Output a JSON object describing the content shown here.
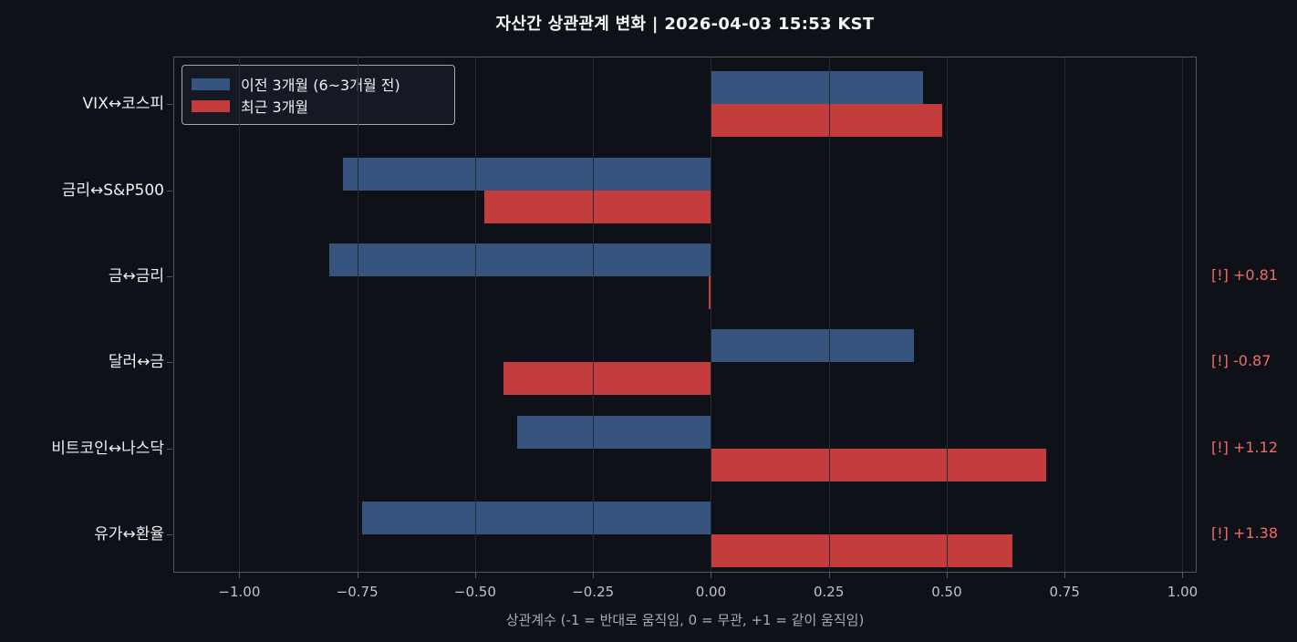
{
  "title": "자산간 상관관계 변화 | 2026-04-03 15:53 KST",
  "colors": {
    "background": "#0E1117",
    "prev_bar": "#36547E",
    "recent_bar": "#C43C3C",
    "alert_annotation": "#F06A6A",
    "spine": "#50565F",
    "grid": "#262B35"
  },
  "chart_data": {
    "type": "bar",
    "orientation": "horizontal",
    "title": "자산간 상관관계 변화 | 2026-04-03 15:53 KST",
    "categories": [
      "VIX↔코스피",
      "금리↔S&P500",
      "금↔금리",
      "달러↔금",
      "비트코인↔나스닥",
      "유가↔환율"
    ],
    "series": [
      {
        "name": "이전 3개월 (6~3개월 전)",
        "color": "#36547E",
        "values": [
          0.45,
          -0.78,
          -0.81,
          0.43,
          -0.41,
          -0.74
        ]
      },
      {
        "name": "최근 3개월",
        "color": "#C43C3C",
        "values": [
          0.49,
          -0.48,
          -0.005,
          -0.44,
          0.71,
          0.64
        ]
      }
    ],
    "change_annotations": [
      "",
      "",
      "[!] +0.81",
      "[!] -0.87",
      "[!] +1.12",
      "[!] +1.38"
    ],
    "xlabel": "상관계수 (-1 = 반대로 움직임, 0 = 무관, +1 = 같이 움직임)",
    "ylabel": "",
    "xlim": [
      -1.14,
      1.03
    ],
    "xticks": [
      -1.0,
      -0.75,
      -0.5,
      -0.25,
      0.0,
      0.25,
      0.5,
      0.75,
      1.0
    ],
    "xtick_labels": [
      "−1.00",
      "−0.75",
      "−0.50",
      "−0.25",
      "0.00",
      "0.25",
      "0.50",
      "0.75",
      "1.00"
    ],
    "grid": true,
    "legend_position": "upper left"
  }
}
